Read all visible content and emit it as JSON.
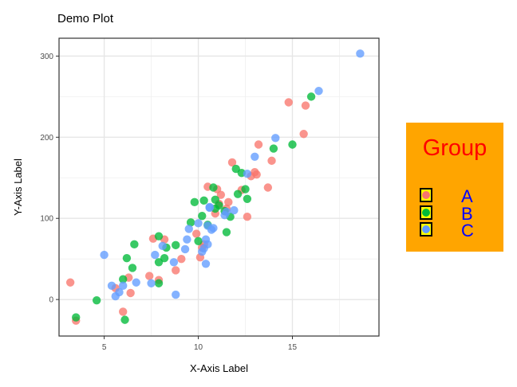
{
  "chart_data": {
    "type": "scatter",
    "title": "Demo Plot",
    "xlabel": "X-Axis Label",
    "ylabel": "Y-Axis Label",
    "xlim": [
      2.6,
      19.6
    ],
    "ylim": [
      -45,
      322
    ],
    "xticks": [
      5,
      10,
      15
    ],
    "yticks": [
      0,
      100,
      200,
      300
    ],
    "grid": true,
    "legend": {
      "title": "Group",
      "position": "right",
      "title_color": "#ff0000",
      "label_color": "#0000ff",
      "background": "#ffa500",
      "key_background": "#ffff00"
    },
    "series": [
      {
        "name": "A",
        "color": "#f8766d",
        "points": [
          [
            3.2,
            21
          ],
          [
            3.5,
            -26
          ],
          [
            5.6,
            14
          ],
          [
            6.0,
            -15
          ],
          [
            6.4,
            8
          ],
          [
            6.3,
            27
          ],
          [
            7.4,
            29
          ],
          [
            7.9,
            24
          ],
          [
            7.6,
            75
          ],
          [
            8.2,
            74
          ],
          [
            8.8,
            36
          ],
          [
            9.1,
            50
          ],
          [
            9.9,
            81
          ],
          [
            10.1,
            52
          ],
          [
            10.2,
            64
          ],
          [
            10.5,
            139
          ],
          [
            10.9,
            106
          ],
          [
            11.1,
            118
          ],
          [
            11.2,
            129
          ],
          [
            11.5,
            112
          ],
          [
            11.6,
            120
          ],
          [
            11.8,
            169
          ],
          [
            12.3,
            135
          ],
          [
            12.6,
            102
          ],
          [
            12.8,
            152
          ],
          [
            13.0,
            157
          ],
          [
            13.1,
            154
          ],
          [
            13.2,
            191
          ],
          [
            13.7,
            138
          ],
          [
            13.9,
            171
          ],
          [
            14.8,
            243
          ],
          [
            15.6,
            204
          ],
          [
            15.7,
            239
          ],
          [
            11.0,
            136
          ],
          [
            10.3,
            68
          ]
        ]
      },
      {
        "name": "B",
        "color": "#00ba38",
        "points": [
          [
            3.5,
            -22
          ],
          [
            4.6,
            -1
          ],
          [
            6.0,
            25
          ],
          [
            6.1,
            -25
          ],
          [
            6.2,
            51
          ],
          [
            6.5,
            39
          ],
          [
            6.6,
            68
          ],
          [
            7.9,
            20
          ],
          [
            7.9,
            46
          ],
          [
            7.9,
            78
          ],
          [
            8.2,
            51
          ],
          [
            8.3,
            64
          ],
          [
            8.8,
            67
          ],
          [
            9.6,
            95
          ],
          [
            9.8,
            120
          ],
          [
            10.0,
            72
          ],
          [
            10.2,
            103
          ],
          [
            10.3,
            122
          ],
          [
            10.5,
            92
          ],
          [
            10.8,
            138
          ],
          [
            10.9,
            123
          ],
          [
            10.9,
            112
          ],
          [
            11.1,
            116
          ],
          [
            11.4,
            109
          ],
          [
            11.5,
            83
          ],
          [
            11.7,
            102
          ],
          [
            12.1,
            130
          ],
          [
            12.3,
            156
          ],
          [
            12.5,
            136
          ],
          [
            12.6,
            124
          ],
          [
            12.0,
            161
          ],
          [
            14.0,
            186
          ],
          [
            15.0,
            191
          ],
          [
            16.0,
            250
          ]
        ]
      },
      {
        "name": "C",
        "color": "#619cff",
        "points": [
          [
            5.0,
            55
          ],
          [
            5.4,
            17
          ],
          [
            5.6,
            4
          ],
          [
            5.8,
            9
          ],
          [
            6.0,
            17
          ],
          [
            6.7,
            21
          ],
          [
            7.5,
            20
          ],
          [
            7.7,
            55
          ],
          [
            8.1,
            66
          ],
          [
            8.8,
            6
          ],
          [
            8.7,
            46
          ],
          [
            9.3,
            62
          ],
          [
            9.4,
            74
          ],
          [
            9.5,
            87
          ],
          [
            10.0,
            94
          ],
          [
            10.2,
            59
          ],
          [
            10.3,
            63
          ],
          [
            10.4,
            74
          ],
          [
            10.4,
            44
          ],
          [
            10.5,
            68
          ],
          [
            10.5,
            91
          ],
          [
            10.7,
            86
          ],
          [
            10.8,
            88
          ],
          [
            10.6,
            113
          ],
          [
            11.4,
            104
          ],
          [
            11.5,
            108
          ],
          [
            12.6,
            155
          ],
          [
            13.0,
            176
          ],
          [
            14.1,
            199
          ],
          [
            16.4,
            257
          ],
          [
            18.6,
            303
          ],
          [
            10.6,
            114
          ],
          [
            11.9,
            110
          ]
        ]
      }
    ]
  }
}
